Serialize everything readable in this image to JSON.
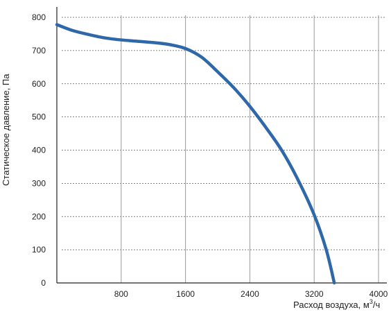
{
  "chart_data": {
    "type": "line",
    "xlabel": "Расход воздуха, м³/ч",
    "xlabel_main": "Расход воздуха, м",
    "xlabel_sup": "3",
    "xlabel_tail": "/ч",
    "ylabel": "Статическое давление, Па",
    "xlim": [
      0,
      4000
    ],
    "ylim": [
      0,
      800
    ],
    "x_ticks": [
      "800",
      "1600",
      "2400",
      "3200",
      "4000"
    ],
    "y_ticks": [
      "0",
      "100",
      "200",
      "300",
      "400",
      "500",
      "600",
      "700",
      "800"
    ],
    "grid": {
      "vertical": "solid",
      "horizontal": "dotted"
    },
    "legend": "none",
    "series": [
      {
        "color": "#2e68a8",
        "x": [
          0,
          200,
          400,
          600,
          800,
          1000,
          1200,
          1400,
          1600,
          1800,
          2000,
          2200,
          2400,
          2600,
          2800,
          3000,
          3200,
          3350,
          3450
        ],
        "y": [
          778,
          760,
          748,
          738,
          732,
          728,
          724,
          718,
          706,
          680,
          636,
          588,
          532,
          468,
          398,
          310,
          205,
          100,
          0
        ]
      }
    ]
  }
}
